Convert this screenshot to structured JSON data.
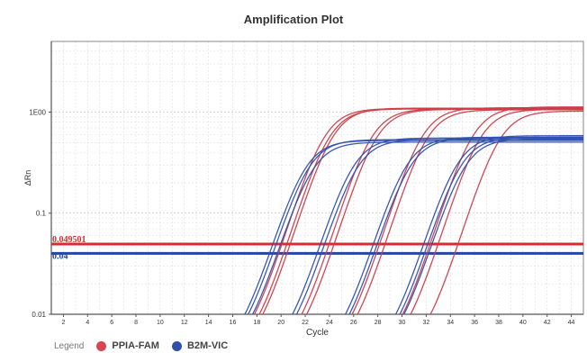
{
  "chart_data": {
    "type": "line",
    "title": "Amplification Plot",
    "xlabel": "Cycle",
    "ylabel": "ΔRn",
    "y_scale": "log",
    "xlim": [
      1,
      45
    ],
    "ylim": [
      0.01,
      5
    ],
    "x_ticks": [
      2,
      4,
      6,
      8,
      10,
      12,
      14,
      16,
      18,
      20,
      22,
      24,
      26,
      28,
      30,
      32,
      34,
      36,
      38,
      40,
      42,
      44
    ],
    "y_ticks": [
      {
        "value": 0.01,
        "label": "0.01"
      },
      {
        "value": 0.1,
        "label": "0.1"
      },
      {
        "value": 1,
        "label": "1E00"
      }
    ],
    "grid": true,
    "thresholds": [
      {
        "value": 0.049501,
        "label": "0.049501",
        "color": "#d62d2d"
      },
      {
        "value": 0.04,
        "label": "0.04",
        "color": "#2348a3"
      }
    ],
    "legend": {
      "title": "Legend",
      "position": "bottom-left",
      "items": [
        {
          "name": "PPIA-FAM",
          "color": "#d64550"
        },
        {
          "name": "B2M-VIC",
          "color": "#2f4fa8"
        }
      ]
    },
    "series": [
      {
        "name": "PPIA-FAM",
        "color": "#cf3d48",
        "curves": [
          {
            "midpoint": 23.5,
            "plateau": 1.08,
            "slope": 1.1
          },
          {
            "midpoint": 23.9,
            "plateau": 1.07,
            "slope": 1.1
          },
          {
            "midpoint": 24.2,
            "plateau": 1.09,
            "slope": 1.1
          },
          {
            "midpoint": 27.4,
            "plateau": 1.07,
            "slope": 1.1
          },
          {
            "midpoint": 27.8,
            "plateau": 1.06,
            "slope": 1.1
          },
          {
            "midpoint": 31.6,
            "plateau": 1.1,
            "slope": 1.1
          },
          {
            "midpoint": 32.0,
            "plateau": 1.05,
            "slope": 1.1
          },
          {
            "midpoint": 35.8,
            "plateau": 1.12,
            "slope": 1.1
          },
          {
            "midpoint": 36.4,
            "plateau": 1.06,
            "slope": 1.1
          },
          {
            "midpoint": 38.0,
            "plateau": 1.02,
            "slope": 1.1
          }
        ]
      },
      {
        "name": "B2M-VIC",
        "color": "#3050b0",
        "curves": [
          {
            "midpoint": 21.9,
            "plateau": 0.52,
            "slope": 1.1
          },
          {
            "midpoint": 22.2,
            "plateau": 0.53,
            "slope": 1.1
          },
          {
            "midpoint": 22.5,
            "plateau": 0.5,
            "slope": 1.1
          },
          {
            "midpoint": 25.9,
            "plateau": 0.55,
            "slope": 1.1
          },
          {
            "midpoint": 26.2,
            "plateau": 0.53,
            "slope": 1.1
          },
          {
            "midpoint": 30.3,
            "plateau": 0.56,
            "slope": 1.1
          },
          {
            "midpoint": 30.6,
            "plateau": 0.55,
            "slope": 1.1
          },
          {
            "midpoint": 34.5,
            "plateau": 0.58,
            "slope": 1.1
          },
          {
            "midpoint": 34.8,
            "plateau": 0.56,
            "slope": 1.1
          },
          {
            "midpoint": 35.1,
            "plateau": 0.54,
            "slope": 1.1
          }
        ]
      }
    ]
  }
}
